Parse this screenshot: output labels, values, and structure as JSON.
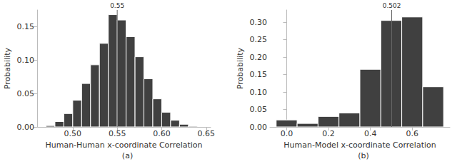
{
  "chart_data": [
    {
      "type": "histogram",
      "x_label": "Human-Human x-coordinate Correlation",
      "y_label": "Probability",
      "caption": "(a)",
      "bins": [
        0.47,
        0.48,
        0.49,
        0.5,
        0.51,
        0.52,
        0.53,
        0.54,
        0.55,
        0.56,
        0.57,
        0.58,
        0.59,
        0.6,
        0.61,
        0.62,
        0.63,
        0.64
      ],
      "counts": [
        0.002,
        0.008,
        0.02,
        0.04,
        0.065,
        0.093,
        0.125,
        0.168,
        0.16,
        0.135,
        0.105,
        0.072,
        0.042,
        0.022,
        0.01,
        0.004,
        0.001
      ],
      "color": "#404040",
      "xlim": [
        0.46,
        0.655
      ],
      "xticks": [
        {
          "value": 0.5,
          "label": "0.50"
        },
        0.55,
        {
          "value": 0.6,
          "label": "0.60"
        },
        0.65
      ],
      "ylim": [
        0,
        0.175
      ],
      "yticks": [
        {
          "value": 0,
          "label": "0.00"
        },
        0.05,
        {
          "value": 0.1,
          "label": "0.10"
        },
        0.15
      ],
      "grid": false,
      "annotations": [
        {
          "x": 0.55,
          "label": "0.55"
        }
      ]
    },
    {
      "type": "histogram",
      "x_label": "Human-Model x-coordinate Correlation",
      "y_label": "Probability",
      "caption": "(b)",
      "bins": [
        -0.05,
        0.05,
        0.15,
        0.25,
        0.35,
        0.45,
        0.55,
        0.65,
        0.75
      ],
      "counts": [
        0.02,
        0.01,
        0.03,
        0.04,
        0.165,
        0.305,
        0.315,
        0.115
      ],
      "color": "#404040",
      "xlim": [
        -0.08,
        0.78
      ],
      "xticks": [
        {
          "value": 0,
          "label": "0.0"
        },
        0.2,
        0.4,
        0.6
      ],
      "ylim": [
        0,
        0.335
      ],
      "yticks": [
        {
          "value": 0,
          "label": "0.00"
        },
        0.05,
        {
          "value": 0.1,
          "label": "0.10"
        },
        0.15,
        {
          "value": 0.2,
          "label": "0.20"
        },
        0.25,
        {
          "value": 0.3,
          "label": "0.30"
        }
      ],
      "grid": false,
      "annotations": [
        {
          "x": 0.502,
          "label": "0.502"
        }
      ]
    }
  ]
}
